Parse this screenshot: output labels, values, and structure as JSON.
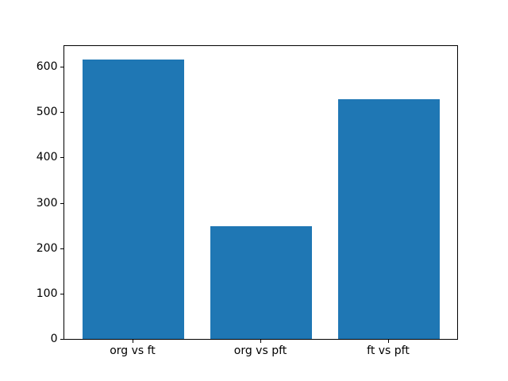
{
  "chart_data": {
    "type": "bar",
    "title": "",
    "xlabel": "",
    "ylabel": "",
    "categories": [
      "org vs ft",
      "org vs pft",
      "ft vs pft"
    ],
    "values": [
      615,
      248,
      528
    ],
    "bar_color": "#1f77b4",
    "background_color": "#ffffff",
    "spine_color": "#000000",
    "yticks": [
      0,
      100,
      200,
      300,
      400,
      500,
      600
    ],
    "ylim": [
      0,
      645.75
    ],
    "xlim": [
      -0.54,
      2.54
    ],
    "bar_width": 0.8,
    "grid": false,
    "legend": false
  }
}
